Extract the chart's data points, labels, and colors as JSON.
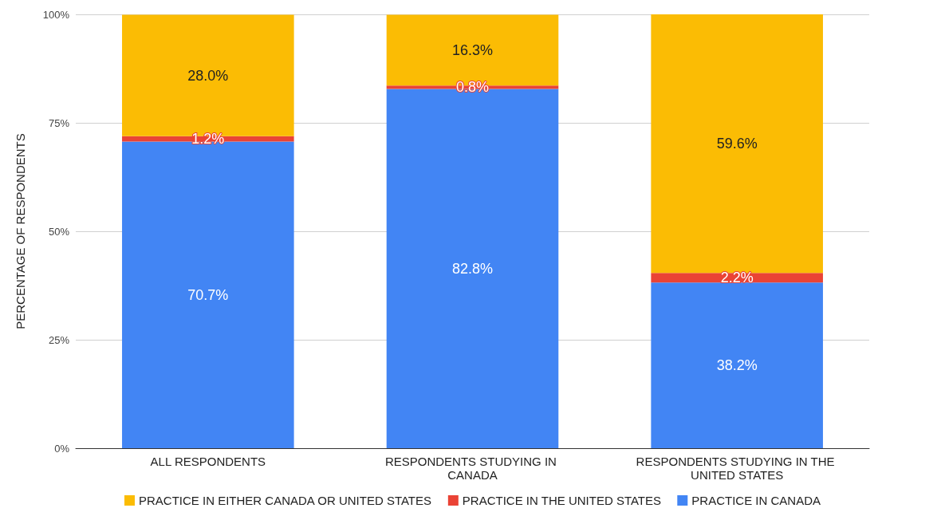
{
  "chart_data": {
    "type": "bar",
    "stacked": true,
    "ylabel": "PERCENTAGE OF RESPONDENTS",
    "categories": [
      "ALL RESPONDENTS",
      "RESPONDENTS STUDYING IN CANADA",
      "RESPONDENTS STUDYING IN THE UNITED STATES"
    ],
    "series": [
      {
        "name": "PRACTICE IN CANADA",
        "color": "#4285f4",
        "values": [
          70.7,
          82.8,
          38.2
        ],
        "value_labels": [
          "70.7%",
          "82.8%",
          "38.2%"
        ]
      },
      {
        "name": "PRACTICE IN THE UNITED STATES",
        "color": "#ea4335",
        "values": [
          1.2,
          0.8,
          2.2
        ],
        "value_labels": [
          "1.2%",
          "0.8%",
          "2.2%"
        ]
      },
      {
        "name": "PRACTICE IN EITHER CANADA OR UNITED STATES",
        "color": "#fbbc04",
        "values": [
          28.0,
          16.3,
          59.6
        ],
        "value_labels": [
          "28.0%",
          "16.3%",
          "59.6%"
        ]
      }
    ],
    "ylim": [
      0,
      100
    ],
    "yticks": [
      {
        "value": 0,
        "label": "0%"
      },
      {
        "value": 25,
        "label": "25%"
      },
      {
        "value": 50,
        "label": "50%"
      },
      {
        "value": 75,
        "label": "75%"
      },
      {
        "value": 100,
        "label": "100%"
      }
    ],
    "grid": "y",
    "legend": "bottom"
  }
}
